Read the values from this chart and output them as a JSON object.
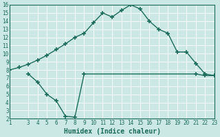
{
  "x_line1": [
    1,
    2,
    3,
    4,
    5,
    6,
    7,
    8,
    9,
    10,
    11,
    12,
    13,
    14,
    15,
    16,
    17,
    18,
    19,
    20,
    21,
    22,
    23
  ],
  "y_line1": [
    8.0,
    8.3,
    8.7,
    9.2,
    9.8,
    10.5,
    11.2,
    12.0,
    12.5,
    13.8,
    15.0,
    14.5,
    15.3,
    16.0,
    15.5,
    14.0,
    13.0,
    12.5,
    10.2,
    10.2,
    8.8,
    7.5,
    7.3
  ],
  "x_line2": [
    3,
    4,
    5,
    6,
    7,
    8,
    9,
    21,
    22,
    23
  ],
  "y_line2": [
    7.5,
    6.5,
    5.0,
    4.2,
    2.3,
    2.2,
    7.5,
    7.5,
    7.3,
    7.3
  ],
  "line_color": "#1a6b5a",
  "bg_color": "#cce8e4",
  "grid_color": "#ffffff",
  "xlabel": "Humidex (Indice chaleur)",
  "ylim": [
    2,
    16
  ],
  "xlim": [
    1,
    23
  ],
  "yticks": [
    2,
    3,
    4,
    5,
    6,
    7,
    8,
    9,
    10,
    11,
    12,
    13,
    14,
    15,
    16
  ],
  "xticks": [
    1,
    3,
    4,
    5,
    6,
    7,
    8,
    9,
    10,
    11,
    12,
    13,
    14,
    15,
    16,
    17,
    18,
    19,
    20,
    21,
    22,
    23
  ],
  "marker": "+",
  "markersize": 4.0,
  "linewidth": 1.0,
  "xlabel_fontsize": 7,
  "tick_fontsize": 5.5
}
